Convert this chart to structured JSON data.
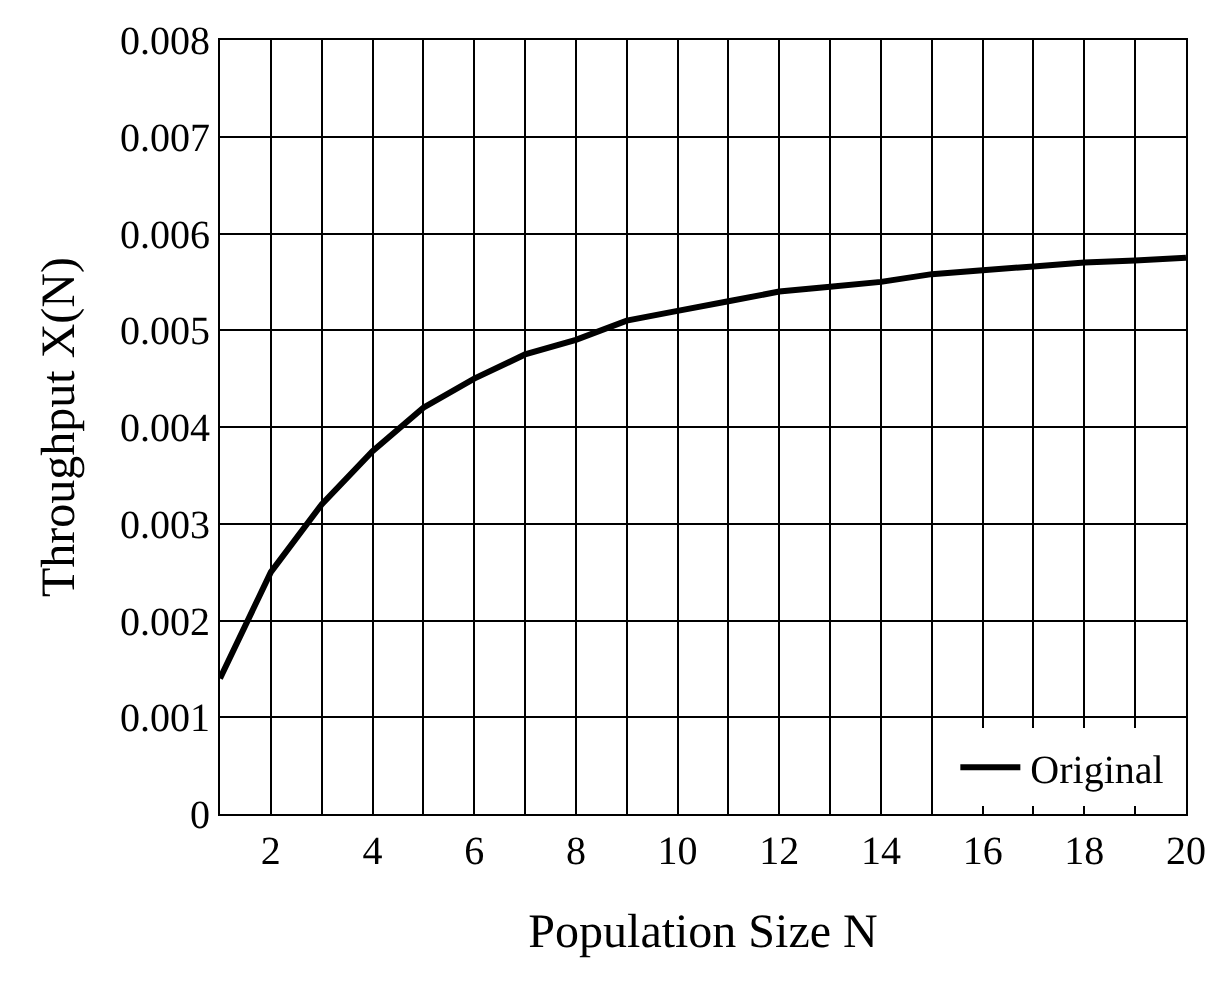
{
  "chart_data": {
    "type": "line",
    "xlabel": "Population Size N",
    "ylabel": "Throughput X(N)",
    "x": [
      1,
      2,
      3,
      4,
      5,
      6,
      7,
      8,
      9,
      10,
      11,
      12,
      13,
      14,
      15,
      16,
      17,
      18,
      19,
      20
    ],
    "series": [
      {
        "name": "Original",
        "color": "#000000",
        "values": [
          0.0014,
          0.0025,
          0.0032,
          0.00375,
          0.0042,
          0.0045,
          0.00475,
          0.0049,
          0.0051,
          0.0052,
          0.0053,
          0.0054,
          0.00545,
          0.0055,
          0.00558,
          0.00562,
          0.00566,
          0.0057,
          0.00572,
          0.00575
        ]
      }
    ],
    "xlim": [
      1,
      20
    ],
    "xticks": [
      {
        "value": 1,
        "label": null
      },
      2,
      {
        "value": 3,
        "label": null
      },
      4,
      {
        "value": 5,
        "label": null
      },
      6,
      {
        "value": 7,
        "label": null
      },
      8,
      {
        "value": 9,
        "label": null
      },
      10,
      {
        "value": 11,
        "label": null
      },
      12,
      {
        "value": 13,
        "label": null
      },
      14,
      {
        "value": 15,
        "label": null
      },
      16,
      {
        "value": 17,
        "label": null
      },
      18,
      {
        "value": 19,
        "label": null
      },
      20
    ],
    "ylim": [
      0,
      0.008
    ],
    "yticks": [
      0,
      0.001,
      0.002,
      0.003,
      0.004,
      0.005,
      0.006,
      0.007,
      0.008
    ],
    "grid": true,
    "legend": "bottom right",
    "marker": "none",
    "line_style": "solid"
  }
}
